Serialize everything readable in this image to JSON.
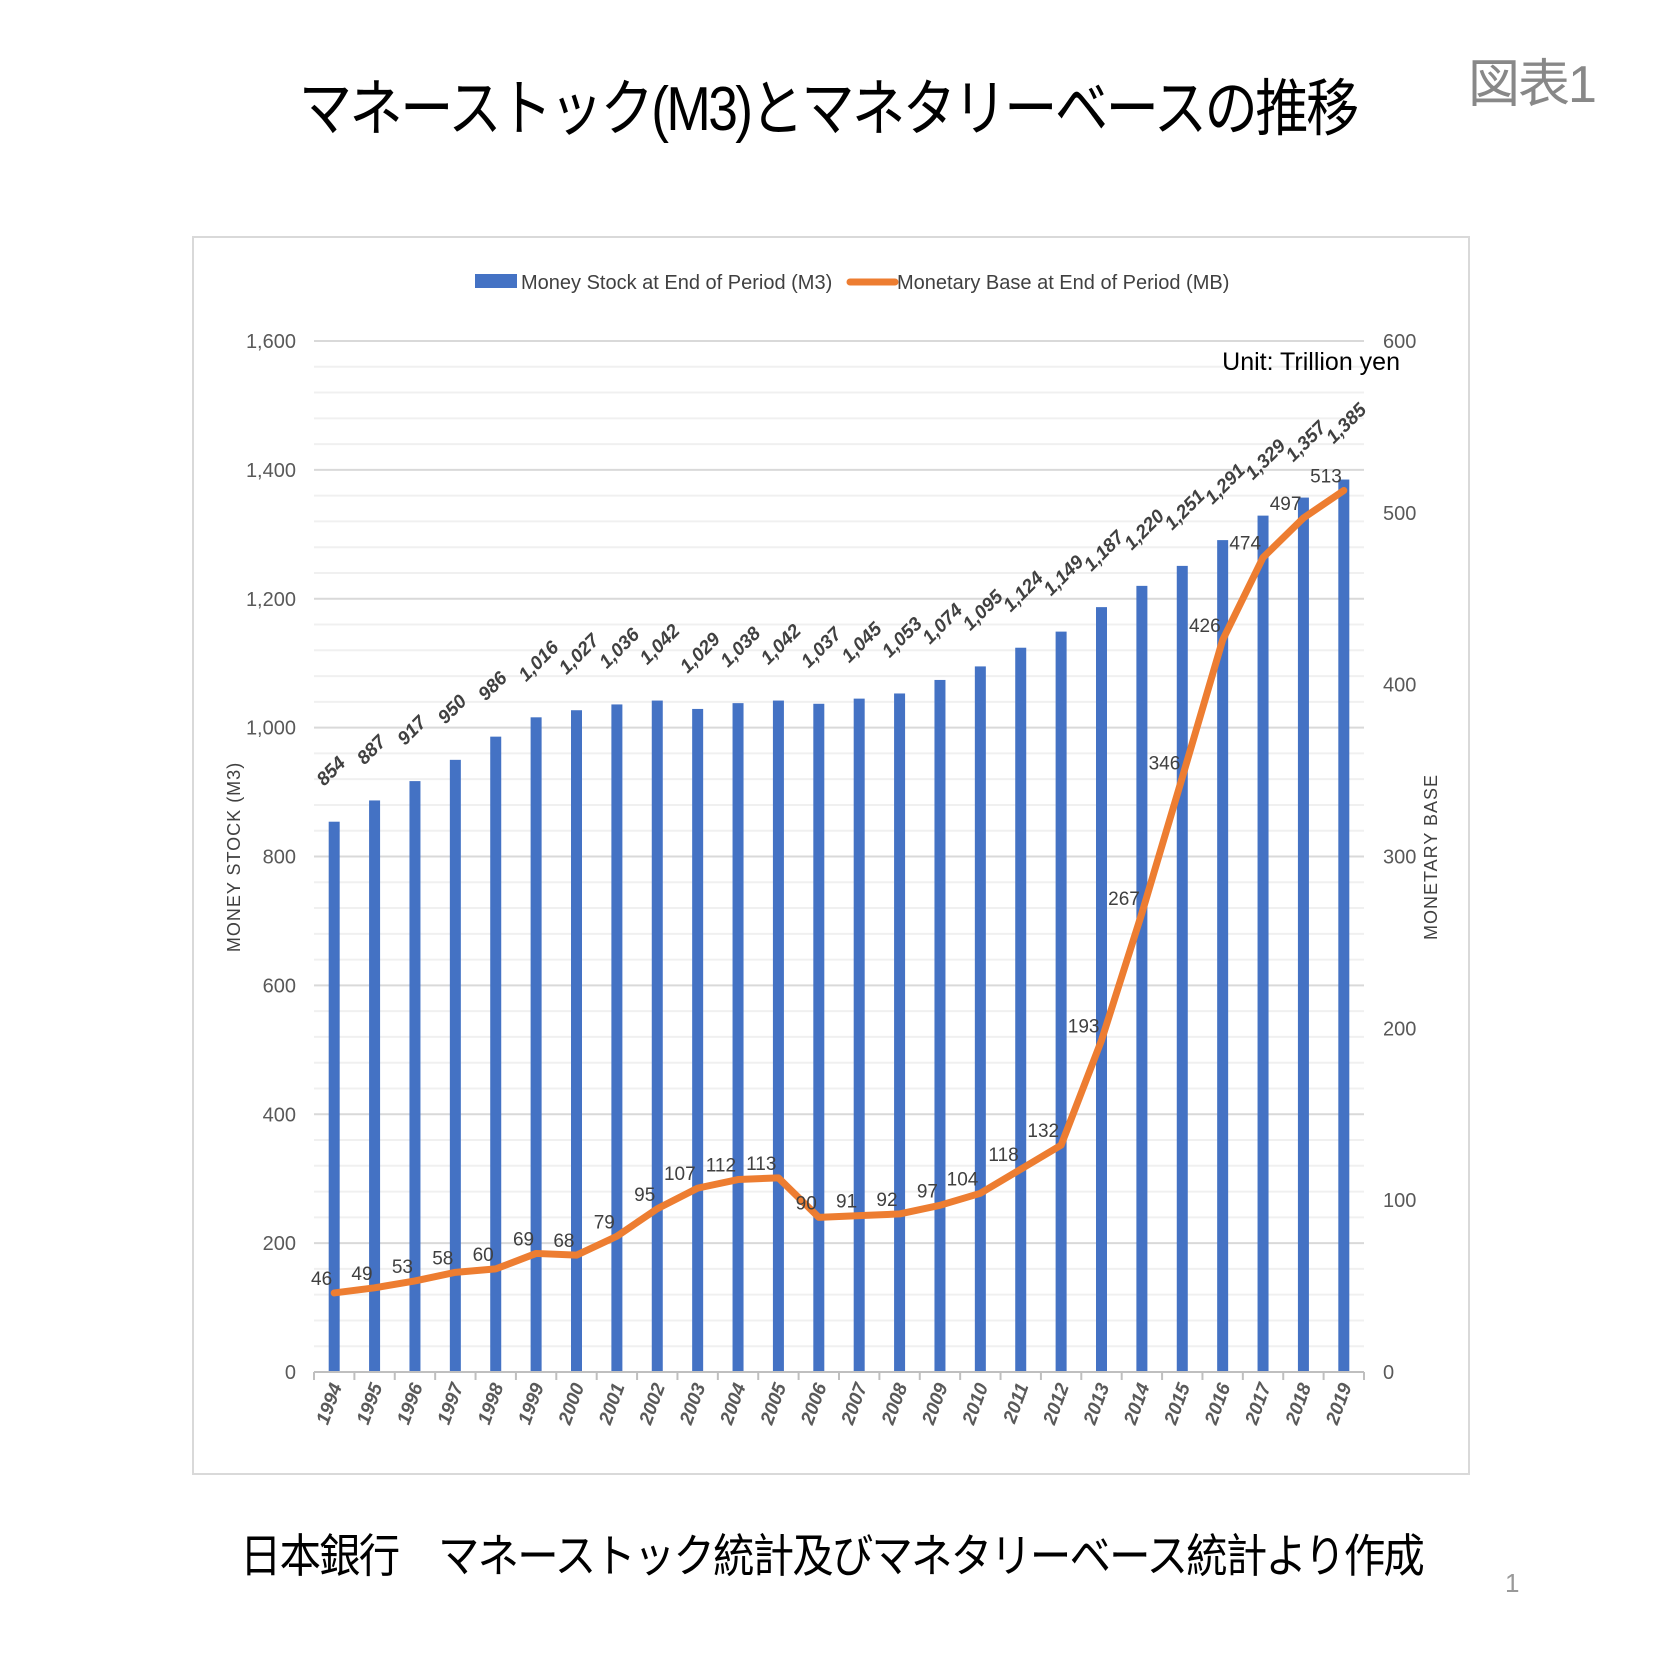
{
  "title": "マネーストック(M3)とマネタリーベースの推移",
  "figure_label": "図表1",
  "footer": "日本銀行　マネーストック統計及びマネタリーベース統計より作成",
  "page_number": "1",
  "chart_data": {
    "type": "bar+line",
    "categories": [
      "1994",
      "1995",
      "1996",
      "1997",
      "1998",
      "1999",
      "2000",
      "2001",
      "2002",
      "2003",
      "2004",
      "2005",
      "2006",
      "2007",
      "2008",
      "2009",
      "2010",
      "2011",
      "2012",
      "2013",
      "2014",
      "2015",
      "2016",
      "2017",
      "2018",
      "2019"
    ],
    "series": [
      {
        "name": "Money Stock at End of Period (M3)",
        "type": "bar",
        "axis": "left",
        "color": "#4472C4",
        "values": [
          854,
          887,
          917,
          950,
          986,
          1016,
          1027,
          1036,
          1042,
          1029,
          1038,
          1042,
          1037,
          1045,
          1053,
          1074,
          1095,
          1124,
          1149,
          1187,
          1220,
          1251,
          1291,
          1329,
          1357,
          1385
        ]
      },
      {
        "name": "Monetary Base at End of Period (MB)",
        "type": "line",
        "axis": "right",
        "color": "#ED7D31",
        "values": [
          46,
          49,
          53,
          58,
          60,
          69,
          68,
          79,
          95,
          107,
          112,
          113,
          90,
          91,
          92,
          97,
          104,
          118,
          132,
          193,
          267,
          346,
          426,
          474,
          497,
          513
        ]
      }
    ],
    "ylabel": "MONEY STOCK (M3)",
    "y2label": "MONETARY BASE",
    "ylim": [
      0,
      1600
    ],
    "y2lim": [
      0,
      600
    ],
    "yticks": [
      0,
      200,
      400,
      600,
      800,
      1000,
      1200,
      1400,
      1600
    ],
    "y2ticks": [
      0,
      100,
      200,
      300,
      400,
      500,
      600
    ],
    "annotation": "Unit: Trillion yen",
    "legend": "top",
    "grid": true
  }
}
